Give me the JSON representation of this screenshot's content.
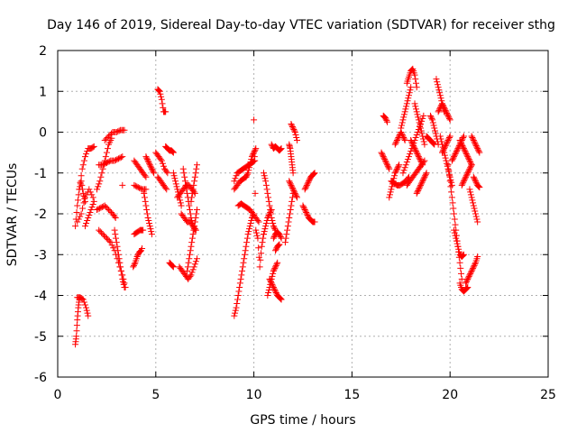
{
  "chart_data": {
    "type": "scatter",
    "title": "Day 146 of 2019, Sidereal Day-to-day VTEC variation (SDTVAR) for receiver sthg",
    "xlabel": "GPS time / hours",
    "ylabel": "SDTVAR / TECUs",
    "xlim": [
      0,
      25
    ],
    "ylim": [
      -6,
      2
    ],
    "x_ticks": [
      "0",
      "5",
      "10",
      "15",
      "20",
      "25"
    ],
    "y_ticks": [
      "2",
      "1",
      "0",
      "-1",
      "-2",
      "-3",
      "-4",
      "-5",
      "-6"
    ],
    "grid": true,
    "marker": "+",
    "series_color": "#ff0000",
    "segments": [
      {
        "x": [
          0.9,
          1.0,
          1.1,
          1.2,
          1.3,
          1.4
        ],
        "y": [
          -2.3,
          -1.8,
          -1.4,
          -1.2,
          -1.5,
          -1.7
        ]
      },
      {
        "x": [
          1.0,
          1.2,
          1.4,
          1.6,
          1.8
        ],
        "y": [
          -2.2,
          -2.0,
          -1.6,
          -1.4,
          -1.6
        ]
      },
      {
        "x": [
          1.4,
          1.55,
          1.7,
          1.85
        ],
        "y": [
          -2.3,
          -2.1,
          -1.9,
          -1.7
        ]
      },
      {
        "x": [
          1.1,
          1.25,
          1.4,
          1.55,
          1.7,
          1.85
        ],
        "y": [
          -1.4,
          -0.9,
          -0.6,
          -0.4,
          -0.4,
          -0.35
        ]
      },
      {
        "x": [
          0.9,
          0.95,
          1.0,
          1.05,
          1.1
        ],
        "y": [
          -5.2,
          -5.0,
          -4.6,
          -4.3,
          -4.1
        ]
      },
      {
        "x": [
          1.0,
          1.15,
          1.3,
          1.45,
          1.55
        ],
        "y": [
          -4.05,
          -4.05,
          -4.1,
          -4.3,
          -4.5
        ]
      },
      {
        "x": [
          2.0,
          2.15,
          2.3,
          2.45,
          2.6,
          2.75
        ],
        "y": [
          -1.4,
          -1.2,
          -0.9,
          -0.6,
          -0.3,
          -0.15
        ]
      },
      {
        "x": [
          2.4,
          2.6,
          2.8,
          3.0,
          3.2,
          3.4
        ],
        "y": [
          -0.2,
          -0.1,
          0.0,
          0.0,
          0.05,
          0.05
        ]
      },
      {
        "x": [
          2.1,
          2.3,
          2.5,
          2.7,
          2.9,
          3.1,
          3.3
        ],
        "y": [
          -0.8,
          -0.8,
          -0.75,
          -0.7,
          -0.7,
          -0.65,
          -0.6
        ]
      },
      {
        "x": [
          2.0,
          2.2,
          2.4,
          2.6,
          2.8,
          2.95
        ],
        "y": [
          -1.9,
          -1.85,
          -1.8,
          -1.9,
          -2.0,
          -2.1
        ]
      },
      {
        "x": [
          2.1,
          2.3,
          2.5,
          2.7,
          2.9,
          3.1,
          3.3,
          3.45
        ],
        "y": [
          -2.4,
          -2.5,
          -2.6,
          -2.7,
          -2.9,
          -3.2,
          -3.5,
          -3.8
        ]
      },
      {
        "x": [
          2.9,
          3.0,
          3.1,
          3.2,
          3.3,
          3.4
        ],
        "y": [
          -2.4,
          -2.7,
          -3.0,
          -3.3,
          -3.6,
          -3.8
        ]
      },
      {
        "x": [
          3.3
        ],
        "y": [
          -1.3
        ]
      },
      {
        "x": [
          3.85,
          3.95,
          4.05,
          4.15,
          4.25
        ],
        "y": [
          -3.3,
          -3.2,
          -3.05,
          -2.95,
          -2.9
        ]
      },
      {
        "x": [
          3.9,
          4.05,
          4.2,
          4.35
        ],
        "y": [
          -2.5,
          -2.45,
          -2.4,
          -2.4
        ]
      },
      {
        "x": [
          3.9,
          4.05,
          4.2,
          4.35,
          4.5
        ],
        "y": [
          -0.7,
          -0.8,
          -0.9,
          -1.0,
          -1.1
        ]
      },
      {
        "x": [
          3.9,
          4.1,
          4.3,
          4.5
        ],
        "y": [
          -1.3,
          -1.35,
          -1.4,
          -1.4
        ]
      },
      {
        "x": [
          4.4,
          4.5,
          4.6,
          4.7,
          4.8
        ],
        "y": [
          -1.5,
          -1.8,
          -2.1,
          -2.3,
          -2.5
        ]
      },
      {
        "x": [
          4.5,
          4.6,
          4.7,
          4.8,
          4.9
        ],
        "y": [
          -0.6,
          -0.7,
          -0.8,
          -0.9,
          -1.0
        ]
      },
      {
        "x": [
          4.3
        ],
        "y": [
          -2.85
        ]
      },
      {
        "x": [
          5.1,
          5.2,
          5.3,
          5.4,
          5.5
        ],
        "y": [
          1.05,
          1.0,
          0.8,
          0.5,
          0.5
        ]
      },
      {
        "x": [
          5.0,
          5.15,
          5.3,
          5.45,
          5.6
        ],
        "y": [
          -0.5,
          -0.6,
          -0.7,
          -0.9,
          -1.0
        ]
      },
      {
        "x": [
          5.1,
          5.25,
          5.4,
          5.55
        ],
        "y": [
          -1.1,
          -1.2,
          -1.3,
          -1.4
        ]
      },
      {
        "x": [
          5.5,
          5.6,
          5.7,
          5.8,
          5.9
        ],
        "y": [
          -0.35,
          -0.4,
          -0.45,
          -0.45,
          -0.5
        ]
      },
      {
        "x": [
          5.7,
          5.8,
          5.9
        ],
        "y": [
          -3.2,
          -3.25,
          -3.3
        ]
      },
      {
        "x": [
          5.9,
          6.0,
          6.1,
          6.2,
          6.3
        ],
        "y": [
          -1.0,
          -1.2,
          -1.4,
          -1.6,
          -1.8
        ]
      },
      {
        "x": [
          6.1,
          6.25,
          6.4,
          6.55,
          6.7,
          6.85,
          7.0
        ],
        "y": [
          -1.6,
          -1.5,
          -1.4,
          -1.3,
          -1.3,
          -1.4,
          -1.5
        ]
      },
      {
        "x": [
          6.2,
          6.35,
          6.5,
          6.65,
          6.8,
          6.95,
          7.1
        ],
        "y": [
          -3.3,
          -3.4,
          -3.5,
          -3.6,
          -3.5,
          -3.3,
          -3.1
        ]
      },
      {
        "x": [
          6.4,
          6.5,
          6.6,
          6.7,
          6.8,
          6.9,
          7.0
        ],
        "y": [
          -0.9,
          -1.2,
          -1.5,
          -1.8,
          -2.1,
          -2.3,
          -2.4
        ]
      },
      {
        "x": [
          6.3,
          6.45,
          6.6,
          6.75,
          6.9,
          7.05
        ],
        "y": [
          -2.0,
          -2.1,
          -2.2,
          -2.2,
          -2.3,
          -2.4
        ]
      },
      {
        "x": [
          6.6,
          6.7,
          6.8,
          6.9,
          7.0,
          7.1
        ],
        "y": [
          -3.4,
          -3.1,
          -2.8,
          -2.5,
          -2.2,
          -1.9
        ]
      },
      {
        "x": [
          6.8,
          6.9,
          7.0,
          7.1
        ],
        "y": [
          -1.7,
          -1.4,
          -1.1,
          -0.8
        ]
      },
      {
        "x": [
          9.0,
          9.1,
          9.2,
          9.3,
          9.4,
          9.5,
          9.6,
          9.7,
          9.8,
          9.9,
          10.0
        ],
        "y": [
          -4.5,
          -4.3,
          -4.0,
          -3.7,
          -3.4,
          -3.1,
          -2.8,
          -2.5,
          -2.3,
          -2.1,
          -2.0
        ]
      },
      {
        "x": [
          9.0,
          9.15,
          9.3,
          9.45,
          9.6,
          9.75,
          9.9,
          10.05
        ],
        "y": [
          -1.2,
          -1.0,
          -0.95,
          -0.9,
          -0.85,
          -0.8,
          -0.75,
          -0.7
        ]
      },
      {
        "x": [
          9.0,
          9.15,
          9.3,
          9.45,
          9.6
        ],
        "y": [
          -1.4,
          -1.3,
          -1.2,
          -1.15,
          -1.1
        ]
      },
      {
        "x": [
          9.6,
          9.7,
          9.8,
          9.9,
          10.0,
          10.1
        ],
        "y": [
          -1.1,
          -1.0,
          -0.8,
          -0.6,
          -0.5,
          -0.4
        ]
      },
      {
        "x": [
          9.2,
          9.35,
          9.5,
          9.65,
          9.8,
          9.95,
          10.1,
          10.25
        ],
        "y": [
          -1.8,
          -1.75,
          -1.8,
          -1.85,
          -1.9,
          -2.0,
          -2.1,
          -2.2
        ]
      },
      {
        "x": [
          10.0,
          10.1,
          10.2,
          10.3,
          10.4,
          10.5
        ],
        "y": [
          0.3,
          -2.4,
          -2.6,
          -3.3,
          -2.8,
          -2.5
        ]
      },
      {
        "x": [
          10.5,
          10.6,
          10.7,
          10.8,
          10.9,
          11.0,
          11.1
        ],
        "y": [
          -1.0,
          -1.2,
          -1.5,
          -1.8,
          -2.1,
          -2.3,
          -2.4
        ]
      },
      {
        "x": [
          10.5,
          10.6,
          10.7,
          10.8,
          10.9
        ],
        "y": [
          -2.5,
          -2.3,
          -2.1,
          -2.0,
          -1.9
        ]
      },
      {
        "x": [
          10.7,
          10.8,
          10.9,
          11.0,
          11.1,
          11.2
        ],
        "y": [
          -4.0,
          -3.8,
          -3.6,
          -3.4,
          -3.3,
          -3.2
        ]
      },
      {
        "x": [
          10.8,
          10.9,
          11.0,
          11.1,
          11.2,
          11.3,
          11.4
        ],
        "y": [
          -3.6,
          -3.7,
          -3.8,
          -3.9,
          -4.0,
          -4.05,
          -4.1
        ]
      },
      {
        "x": [
          10.9,
          11.0,
          11.1,
          11.2,
          11.3,
          11.4
        ],
        "y": [
          -0.3,
          -0.4,
          -0.35,
          -0.4,
          -0.45,
          -0.4
        ]
      },
      {
        "x": [
          11.0,
          11.1,
          11.2,
          11.3,
          11.4
        ],
        "y": [
          -2.6,
          -2.5,
          -2.45,
          -2.5,
          -2.6
        ]
      },
      {
        "x": [
          11.1,
          11.2,
          11.3
        ],
        "y": [
          -2.9,
          -2.8,
          -2.75
        ]
      },
      {
        "x": [
          11.6,
          11.7,
          11.8,
          11.9,
          12.0
        ],
        "y": [
          -2.7,
          -2.4,
          -2.1,
          -1.8,
          -1.5
        ]
      },
      {
        "x": [
          11.8,
          11.85,
          11.9,
          11.95,
          12.0
        ],
        "y": [
          -0.3,
          -0.4,
          -0.6,
          -0.8,
          -1.0
        ]
      },
      {
        "x": [
          11.9,
          12.0,
          12.1,
          12.2
        ],
        "y": [
          0.2,
          0.1,
          0.0,
          -0.2
        ]
      },
      {
        "x": [
          11.8,
          11.9,
          12.0,
          12.1,
          12.2
        ],
        "y": [
          -1.2,
          -1.3,
          -1.4,
          -1.5,
          -1.6
        ]
      },
      {
        "x": [
          12.5,
          12.6,
          12.7,
          12.8,
          12.9,
          13.0,
          13.1
        ],
        "y": [
          -1.8,
          -1.9,
          -2.0,
          -2.1,
          -2.15,
          -2.2,
          -2.2
        ]
      },
      {
        "x": [
          12.6,
          12.7,
          12.8,
          12.9,
          13.0,
          13.1
        ],
        "y": [
          -1.4,
          -1.3,
          -1.2,
          -1.1,
          -1.05,
          -1.0
        ]
      },
      {
        "x": [
          16.6,
          16.7,
          16.8
        ],
        "y": [
          0.4,
          0.35,
          0.25
        ]
      },
      {
        "x": [
          16.5,
          16.6,
          16.7,
          16.8,
          16.9
        ],
        "y": [
          -0.5,
          -0.6,
          -0.7,
          -0.8,
          -0.9
        ]
      },
      {
        "x": [
          16.9,
          17.0,
          17.1,
          17.2,
          17.3,
          17.4
        ],
        "y": [
          -1.6,
          -1.4,
          -1.2,
          -1.0,
          -0.9,
          -0.8
        ]
      },
      {
        "x": [
          17.0,
          17.15,
          17.3,
          17.45,
          17.6,
          17.75,
          17.9
        ],
        "y": [
          -1.2,
          -1.25,
          -1.3,
          -1.3,
          -1.25,
          -1.2,
          -1.1
        ]
      },
      {
        "x": [
          17.2,
          17.3,
          17.4,
          17.5,
          17.6,
          17.7
        ],
        "y": [
          -0.3,
          -0.2,
          -0.1,
          0.0,
          -0.1,
          -0.2
        ]
      },
      {
        "x": [
          17.5,
          17.6,
          17.7,
          17.8,
          17.9,
          18.0
        ],
        "y": [
          0.1,
          0.3,
          0.5,
          0.7,
          0.9,
          1.1
        ]
      },
      {
        "x": [
          17.8,
          17.9,
          18.0,
          18.1,
          18.2,
          18.3
        ],
        "y": [
          1.2,
          1.35,
          1.5,
          1.55,
          1.4,
          1.1
        ]
      },
      {
        "x": [
          17.6,
          17.75,
          17.9,
          18.05,
          18.2,
          18.35,
          18.5,
          18.65
        ],
        "y": [
          -1.0,
          -0.8,
          -0.6,
          -0.4,
          -0.2,
          0.0,
          0.2,
          0.4
        ]
      },
      {
        "x": [
          17.8,
          17.95,
          18.1,
          18.25,
          18.4,
          18.55,
          18.7
        ],
        "y": [
          -1.3,
          -1.2,
          -1.1,
          -1.0,
          -0.9,
          -0.8,
          -0.7
        ]
      },
      {
        "x": [
          18.0,
          18.1,
          18.2,
          18.3,
          18.4,
          18.5,
          18.6
        ],
        "y": [
          -0.2,
          -0.3,
          -0.4,
          -0.5,
          -0.6,
          -0.7,
          -0.8
        ]
      },
      {
        "x": [
          18.2,
          18.3,
          18.4,
          18.5,
          18.6,
          18.7
        ],
        "y": [
          0.7,
          0.5,
          0.3,
          0.1,
          -0.1,
          -0.3
        ]
      },
      {
        "x": [
          18.3,
          18.4,
          18.5,
          18.6,
          18.7,
          18.8
        ],
        "y": [
          -1.5,
          -1.4,
          -1.3,
          -1.2,
          -1.1,
          -1.0
        ]
      },
      {
        "x": [
          18.8,
          18.9,
          19.0,
          19.1,
          19.2
        ],
        "y": [
          -0.1,
          -0.15,
          -0.2,
          -0.25,
          -0.3
        ]
      },
      {
        "x": [
          19.0,
          19.1,
          19.2,
          19.3,
          19.4
        ],
        "y": [
          0.4,
          0.3,
          0.1,
          -0.1,
          -0.3
        ]
      },
      {
        "x": [
          19.3,
          19.4,
          19.5,
          19.6,
          19.7
        ],
        "y": [
          1.3,
          1.1,
          0.9,
          0.7,
          0.5
        ]
      },
      {
        "x": [
          19.4,
          19.5,
          19.6,
          19.7,
          19.8,
          19.9,
          20.0
        ],
        "y": [
          0.5,
          0.6,
          0.7,
          0.6,
          0.5,
          0.4,
          0.3
        ]
      },
      {
        "x": [
          19.5,
          19.6,
          19.7,
          19.8,
          19.9,
          20.0,
          20.1
        ],
        "y": [
          -0.1,
          -0.3,
          -0.5,
          -0.7,
          -0.9,
          -1.1,
          -1.3
        ]
      },
      {
        "x": [
          19.6,
          19.7,
          19.8,
          19.9,
          20.0
        ],
        "y": [
          -0.5,
          -0.4,
          -0.3,
          -0.2,
          -0.1
        ]
      },
      {
        "x": [
          19.9,
          20.0,
          20.1,
          20.2,
          20.3,
          20.4,
          20.5,
          20.6
        ],
        "y": [
          -0.8,
          -1.2,
          -1.6,
          -2.0,
          -2.4,
          -2.8,
          -3.2,
          -3.6
        ]
      },
      {
        "x": [
          20.2,
          20.3,
          20.4,
          20.5,
          20.6,
          20.7
        ],
        "y": [
          -2.4,
          -2.6,
          -2.8,
          -3.0,
          -3.05,
          -3.0
        ]
      },
      {
        "x": [
          20.5,
          20.6,
          20.7,
          20.8,
          20.9
        ],
        "y": [
          -3.7,
          -3.85,
          -3.9,
          -3.85,
          -3.8
        ]
      },
      {
        "x": [
          20.8,
          20.9,
          21.0,
          21.1,
          21.2,
          21.3,
          21.4
        ],
        "y": [
          -3.7,
          -3.6,
          -3.5,
          -3.4,
          -3.3,
          -3.2,
          -3.05
        ]
      },
      {
        "x": [
          20.1,
          20.2,
          20.3,
          20.4,
          20.5,
          20.6,
          20.7
        ],
        "y": [
          -0.7,
          -0.6,
          -0.5,
          -0.4,
          -0.3,
          -0.2,
          -0.1
        ]
      },
      {
        "x": [
          20.5,
          20.6,
          20.7,
          20.8,
          20.9,
          21.0,
          21.1
        ],
        "y": [
          -0.2,
          -0.3,
          -0.4,
          -0.5,
          -0.6,
          -0.7,
          -0.8
        ]
      },
      {
        "x": [
          20.6,
          20.7,
          20.8,
          20.9,
          21.0,
          21.1
        ],
        "y": [
          -1.3,
          -1.2,
          -1.1,
          -1.0,
          -0.9,
          -0.8
        ]
      },
      {
        "x": [
          21.0,
          21.1,
          21.2,
          21.3,
          21.4
        ],
        "y": [
          -1.4,
          -1.6,
          -1.8,
          -2.0,
          -2.2
        ]
      },
      {
        "x": [
          21.1,
          21.2,
          21.3,
          21.4,
          21.5
        ],
        "y": [
          -0.1,
          -0.2,
          -0.3,
          -0.4,
          -0.5
        ]
      },
      {
        "x": [
          21.2,
          21.3,
          21.4,
          21.5
        ],
        "y": [
          -1.1,
          -1.2,
          -1.3,
          -1.35
        ]
      }
    ]
  }
}
